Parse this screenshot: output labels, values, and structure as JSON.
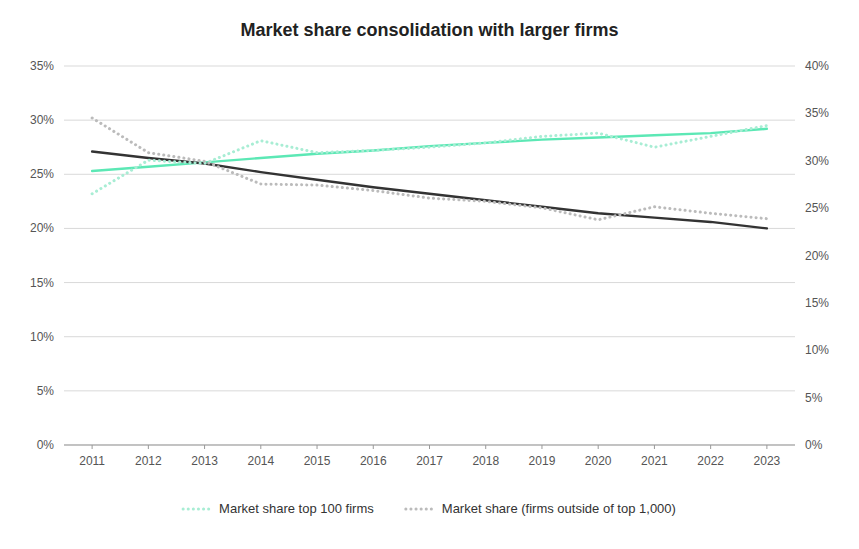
{
  "chart_data": {
    "type": "line",
    "title": "Market share consolidation with larger firms",
    "x": [
      2011,
      2012,
      2013,
      2014,
      2015,
      2016,
      2017,
      2018,
      2019,
      2020,
      2021,
      2022,
      2023
    ],
    "xlim": [
      2010.5,
      2023.5
    ],
    "xticks": [
      2011,
      2012,
      2013,
      2014,
      2015,
      2016,
      2017,
      2018,
      2019,
      2020,
      2021,
      2022,
      2023
    ],
    "ylim": [
      0,
      0.35
    ],
    "yticks": [
      {
        "value": 0,
        "label": "0%"
      },
      {
        "value": 0.05,
        "label": "5%"
      },
      {
        "value": 0.1,
        "label": "10%"
      },
      {
        "value": 0.15,
        "label": "15%"
      },
      {
        "value": 0.2,
        "label": "20%"
      },
      {
        "value": 0.25,
        "label": "25%"
      },
      {
        "value": 0.3,
        "label": "30%"
      },
      {
        "value": 0.35,
        "label": "35%"
      }
    ],
    "y2lim": [
      0,
      0.4
    ],
    "y2ticks": [
      {
        "value": 0,
        "label": "0%"
      },
      {
        "value": 0.05,
        "label": "5%"
      },
      {
        "value": 0.1,
        "label": "10%"
      },
      {
        "value": 0.15,
        "label": "15%"
      },
      {
        "value": 0.2,
        "label": "20%"
      },
      {
        "value": 0.25,
        "label": "25%"
      },
      {
        "value": 0.3,
        "label": "30%"
      },
      {
        "value": 0.35,
        "label": "35%"
      },
      {
        "value": 0.4,
        "label": "40%"
      }
    ],
    "grid": true,
    "legend": "bottom",
    "series": [
      {
        "color": "#5CE8B5",
        "line_style": "solid",
        "values": [
          0.253,
          0.257,
          0.261,
          0.265,
          0.269,
          0.272,
          0.276,
          0.279,
          0.282,
          0.284,
          0.286,
          0.288,
          0.292
        ]
      },
      {
        "color": "#333333",
        "line_style": "solid",
        "values": [
          0.271,
          0.265,
          0.26,
          0.252,
          0.245,
          0.238,
          0.232,
          0.226,
          0.22,
          0.214,
          0.21,
          0.206,
          0.2
        ]
      },
      {
        "name": "Market share top 100 firms",
        "color": "#A8EDD4",
        "line_style": "dotted",
        "values": [
          0.232,
          0.263,
          0.26,
          0.281,
          0.27,
          0.272,
          0.275,
          0.279,
          0.285,
          0.288,
          0.275,
          0.285,
          0.295
        ]
      },
      {
        "name": "Market share (firms outside of top 1,000)",
        "color": "#BBBBBB",
        "line_style": "dotted",
        "values": [
          0.302,
          0.27,
          0.262,
          0.241,
          0.24,
          0.235,
          0.228,
          0.225,
          0.219,
          0.208,
          0.22,
          0.214,
          0.209
        ]
      }
    ]
  }
}
